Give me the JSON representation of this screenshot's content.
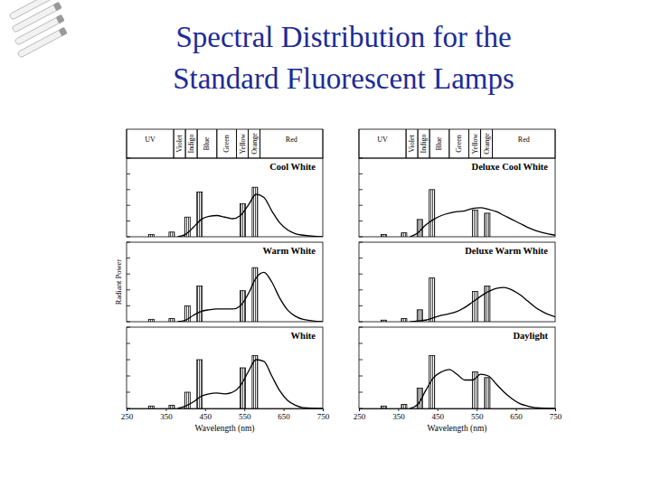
{
  "title": "Spectral Distribution for the Standard Fluorescent Lamps",
  "chart_data": [
    {
      "type": "line",
      "title": "Cool White",
      "xlim": [
        250,
        750
      ],
      "ylim": [
        0,
        100
      ],
      "yticks": [
        0,
        20,
        40,
        60,
        80,
        100
      ],
      "tick_labels": false,
      "regions": [
        {
          "label": "UV",
          "from": 250,
          "to": 370
        },
        {
          "label": "Violet",
          "from": 370,
          "to": 400
        },
        {
          "label": "Indigo",
          "from": 400,
          "to": 430
        },
        {
          "label": "Blue",
          "from": 430,
          "to": 480
        },
        {
          "label": "Green",
          "from": 480,
          "to": 530
        },
        {
          "label": "Yellow",
          "from": 530,
          "to": 560
        },
        {
          "label": "Orange",
          "from": 560,
          "to": 590
        },
        {
          "label": "Red",
          "from": 590,
          "to": 750
        }
      ],
      "series": [
        {
          "type": "bar",
          "x": [
            313,
            365,
            405,
            436,
            546,
            577
          ],
          "values": [
            3,
            6,
            25,
            57,
            42,
            63
          ]
        },
        {
          "type": "line",
          "x": [
            380,
            400,
            420,
            440,
            460,
            480,
            500,
            520,
            540,
            560,
            580,
            600,
            620,
            640,
            660,
            680,
            700,
            750
          ],
          "values": [
            0,
            3,
            12,
            22,
            26,
            27,
            25,
            23,
            27,
            40,
            54,
            50,
            33,
            18,
            9,
            4,
            2,
            0
          ]
        }
      ]
    },
    {
      "type": "line",
      "title": "Deluxe Cool White",
      "xlim": [
        250,
        750
      ],
      "ylim": [
        0,
        100
      ],
      "yticks": [
        0,
        20,
        40,
        60,
        80,
        100
      ],
      "tick_labels": false,
      "regions": [
        {
          "label": "UV",
          "from": 250,
          "to": 370
        },
        {
          "label": "Violet",
          "from": 370,
          "to": 400
        },
        {
          "label": "Indigo",
          "from": 400,
          "to": 430
        },
        {
          "label": "Blue",
          "from": 430,
          "to": 480
        },
        {
          "label": "Green",
          "from": 480,
          "to": 530
        },
        {
          "label": "Yellow",
          "from": 530,
          "to": 560
        },
        {
          "label": "Orange",
          "from": 560,
          "to": 590
        },
        {
          "label": "Red",
          "from": 590,
          "to": 750
        }
      ],
      "series": [
        {
          "type": "bar",
          "x": [
            313,
            365,
            405,
            436,
            546,
            577
          ],
          "values": [
            3,
            5,
            22,
            60,
            34,
            30
          ]
        },
        {
          "type": "line",
          "x": [
            380,
            400,
            420,
            440,
            460,
            480,
            500,
            520,
            540,
            560,
            580,
            600,
            620,
            640,
            660,
            680,
            700,
            720,
            750
          ],
          "values": [
            0,
            5,
            15,
            22,
            27,
            30,
            32,
            33,
            36,
            37,
            35,
            32,
            27,
            22,
            17,
            12,
            8,
            5,
            2
          ]
        }
      ]
    },
    {
      "type": "line",
      "title": "Warm White",
      "xlim": [
        250,
        750
      ],
      "ylim": [
        0,
        100
      ],
      "yticks": [
        0,
        20,
        40,
        60,
        80,
        100
      ],
      "tick_labels": false,
      "ylabel": "Radiant Power",
      "series": [
        {
          "type": "bar",
          "x": [
            313,
            365,
            405,
            436,
            546,
            577
          ],
          "values": [
            3,
            4,
            20,
            45,
            39,
            68
          ]
        },
        {
          "type": "line",
          "x": [
            380,
            400,
            420,
            440,
            460,
            480,
            500,
            520,
            540,
            560,
            580,
            600,
            620,
            640,
            660,
            680,
            700,
            750
          ],
          "values": [
            0,
            2,
            8,
            13,
            15,
            16,
            16,
            16,
            20,
            35,
            55,
            62,
            50,
            30,
            15,
            7,
            3,
            0
          ]
        }
      ]
    },
    {
      "type": "line",
      "title": "Deluxe Warm White",
      "xlim": [
        250,
        750
      ],
      "ylim": [
        0,
        100
      ],
      "yticks": [
        0,
        20,
        40,
        60,
        80,
        100
      ],
      "tick_labels": false,
      "series": [
        {
          "type": "bar",
          "x": [
            313,
            365,
            405,
            436,
            546,
            577
          ],
          "values": [
            2,
            4,
            15,
            55,
            38,
            45
          ]
        },
        {
          "type": "line",
          "x": [
            380,
            400,
            420,
            440,
            460,
            480,
            500,
            520,
            540,
            560,
            580,
            600,
            620,
            640,
            660,
            680,
            700,
            720,
            750
          ],
          "values": [
            0,
            1,
            2,
            5,
            8,
            10,
            13,
            18,
            25,
            32,
            38,
            42,
            43,
            40,
            34,
            26,
            18,
            12,
            6
          ]
        }
      ]
    },
    {
      "type": "line",
      "title": "White",
      "xlim": [
        250,
        750
      ],
      "ylim": [
        0,
        100
      ],
      "yticks": [
        0,
        20,
        40,
        60,
        80,
        100
      ],
      "xticks": [
        250,
        350,
        450,
        550,
        650,
        750
      ],
      "tick_labels": "x",
      "xlabel": "Wavelength (nm)",
      "series": [
        {
          "type": "bar",
          "x": [
            313,
            365,
            405,
            436,
            546,
            577
          ],
          "values": [
            3,
            4,
            20,
            60,
            50,
            65
          ]
        },
        {
          "type": "line",
          "x": [
            380,
            400,
            420,
            440,
            460,
            480,
            500,
            520,
            540,
            560,
            580,
            600,
            620,
            640,
            660,
            680,
            700,
            750
          ],
          "values": [
            0,
            3,
            8,
            15,
            18,
            19,
            18,
            20,
            28,
            45,
            60,
            58,
            40,
            22,
            10,
            4,
            1,
            0
          ]
        }
      ]
    },
    {
      "type": "line",
      "title": "Daylight",
      "xlim": [
        250,
        750
      ],
      "ylim": [
        0,
        100
      ],
      "yticks": [
        0,
        20,
        40,
        60,
        80,
        100
      ],
      "xticks": [
        250,
        350,
        450,
        550,
        650,
        750
      ],
      "tick_labels": "x",
      "xlabel": "Wavelength (nm)",
      "series": [
        {
          "type": "bar",
          "x": [
            313,
            365,
            405,
            436,
            546,
            577
          ],
          "values": [
            3,
            5,
            25,
            65,
            45,
            38
          ]
        },
        {
          "type": "line",
          "x": [
            380,
            400,
            420,
            440,
            460,
            480,
            500,
            520,
            540,
            560,
            580,
            600,
            620,
            640,
            660,
            680,
            700,
            750
          ],
          "values": [
            0,
            5,
            22,
            38,
            45,
            48,
            42,
            35,
            35,
            42,
            40,
            30,
            20,
            12,
            6,
            3,
            1,
            0
          ]
        }
      ]
    }
  ]
}
